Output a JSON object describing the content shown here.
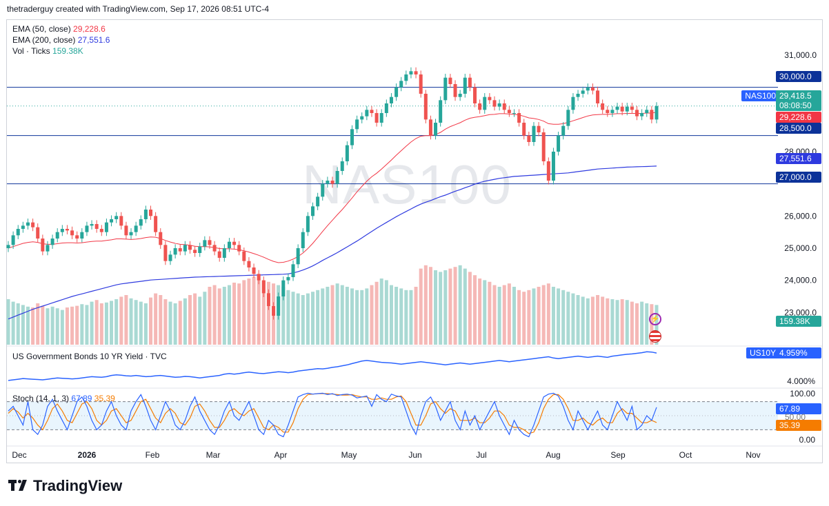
{
  "header": "thetraderguy created with TradingView.com, Sep 17, 2026 08:51 UTC-4",
  "watermark": "NAS100",
  "brand": "TradingView",
  "legend": {
    "ema50_label": "EMA (50, close)",
    "ema50_value": "29,228.6",
    "ema200_label": "EMA (200, close)",
    "ema200_value": "27,551.6",
    "vol_label": "Vol · Ticks",
    "vol_value": "159.38K"
  },
  "bond_pane": {
    "label": "US Government Bonds 10 YR Yield · TVC",
    "tag": "US10Y",
    "value": "4.959%",
    "axis_label": "4.000%"
  },
  "stoch_pane": {
    "label": "Stoch (14, 1, 3)",
    "k_value": "67.89",
    "d_value": "35.39",
    "axis": [
      "100.00",
      "50.00",
      "0.00"
    ]
  },
  "price_tags": {
    "symbol": "NAS100",
    "last": "29,418.5",
    "countdown": "08:08:50",
    "ema50": "29,228.6",
    "ema200": "27,551.6",
    "vol": "159.38K",
    "level_30000": "30,000.0",
    "level_28500": "28,500.0",
    "level_27000": "27,000.0"
  },
  "colors": {
    "up": "#26a69a",
    "down": "#ef5350",
    "ema50": "#f23645",
    "ema200": "#2e3adf",
    "vol_up": "#a9d9d3",
    "vol_down": "#f5b8b6",
    "bond": "#2962ff",
    "stoch_k": "#2962ff",
    "stoch_d": "#f57c00",
    "hline": "#0c3299"
  },
  "chart_data": {
    "type": "candlestick",
    "symbol": "NAS100",
    "x_ticks": [
      "Dec",
      "2026",
      "Feb",
      "Mar",
      "Apr",
      "May",
      "Jun",
      "Jul",
      "Aug",
      "Sep",
      "Oct",
      "Nov"
    ],
    "y_ticks": [
      "31,000.0",
      "28,000.0",
      "26,000.0",
      "25,000.0",
      "24,000.0",
      "23,000.0"
    ],
    "y_tick_values": [
      31000,
      28000,
      26000,
      25000,
      24000,
      23000
    ],
    "y_range": [
      22000,
      31900
    ],
    "horizontal_levels": [
      30000,
      28500,
      27000
    ],
    "last_price": 29418.5,
    "close_series": [
      25100,
      25400,
      25600,
      25700,
      25800,
      25650,
      25300,
      24900,
      25100,
      25300,
      25500,
      25600,
      25550,
      25400,
      25300,
      25500,
      25700,
      25750,
      25600,
      25500,
      25800,
      25900,
      26000,
      25700,
      25400,
      25500,
      25700,
      25900,
      26200,
      26000,
      25500,
      25100,
      24600,
      24800,
      25000,
      24900,
      25100,
      24950,
      24850,
      25050,
      25250,
      25100,
      24900,
      24700,
      25000,
      25200,
      25100,
      24900,
      24600,
      24400,
      24200,
      24000,
      23600,
      23200,
      22900,
      23500,
      24000,
      24100,
      24500,
      25000,
      25500,
      26000,
      26300,
      26600,
      27000,
      27100,
      27000,
      27400,
      27700,
      28200,
      28700,
      29000,
      29100,
      29300,
      29200,
      28900,
      29200,
      29500,
      29700,
      30000,
      30200,
      30400,
      30500,
      30400,
      29800,
      29000,
      28500,
      28900,
      29600,
      30300,
      30100,
      29700,
      29800,
      30300,
      30000,
      29500,
      29300,
      29700,
      29600,
      29400,
      29500,
      29300,
      29200,
      29200,
      28900,
      28500,
      28300,
      28800,
      28600,
      27700,
      27100,
      28000,
      28500,
      28800,
      29300,
      29700,
      29800,
      29900,
      30000,
      29900,
      29500,
      29300,
      29200,
      29300,
      29400,
      29250,
      29400,
      29300,
      29100,
      29200,
      29300,
      29000,
      29418.5
    ],
    "ema50_series": [
      25000,
      25050,
      25100,
      25150,
      25180,
      25200,
      25180,
      25140,
      25120,
      25120,
      25140,
      25160,
      25170,
      25170,
      25160,
      25170,
      25190,
      25210,
      25220,
      25220,
      25240,
      25260,
      25290,
      25290,
      25280,
      25270,
      25280,
      25300,
      25330,
      25350,
      25340,
      25300,
      25240,
      25190,
      25150,
      25120,
      25110,
      25090,
      25060,
      25050,
      25050,
      25040,
      25020,
      24990,
      24980,
      24980,
      24970,
      24950,
      24920,
      24880,
      24830,
      24780,
      24720,
      24650,
      24590,
      24550,
      24560,
      24600,
      24660,
      24740,
      24850,
      24990,
      25150,
      25330,
      25520,
      25700,
      25870,
      26040,
      26200,
      26380,
      26560,
      26750,
      26920,
      27080,
      27220,
      27330,
      27460,
      27600,
      27740,
      27890,
      28030,
      28170,
      28300,
      28410,
      28480,
      28500,
      28500,
      28530,
      28600,
      28700,
      28780,
      28840,
      28900,
      28980,
      29040,
      29070,
      29090,
      29120,
      29150,
      29160,
      29180,
      29180,
      29170,
      29160,
      29140,
      29100,
      29050,
      29030,
      29000,
      28950,
      28870,
      28850,
      28850,
      28870,
      28910,
      28960,
      29010,
      29060,
      29110,
      29140,
      29150,
      29160,
      29160,
      29170,
      29180,
      29180,
      29190,
      29190,
      29190,
      29190,
      29200,
      29200,
      29228.6
    ],
    "ema200_series": [
      22800,
      22860,
      22920,
      22980,
      23040,
      23100,
      23150,
      23200,
      23250,
      23300,
      23350,
      23400,
      23450,
      23500,
      23540,
      23580,
      23620,
      23660,
      23700,
      23740,
      23780,
      23820,
      23860,
      23890,
      23910,
      23930,
      23950,
      23970,
      23990,
      24010,
      24020,
      24030,
      24040,
      24050,
      24060,
      24070,
      24080,
      24090,
      24100,
      24105,
      24110,
      24115,
      24120,
      24125,
      24130,
      24135,
      24140,
      24145,
      24150,
      24155,
      24160,
      24165,
      24170,
      24175,
      24180,
      24185,
      24190,
      24200,
      24230,
      24270,
      24320,
      24380,
      24450,
      24530,
      24620,
      24700,
      24780,
      24860,
      24950,
      25040,
      25130,
      25220,
      25320,
      25420,
      25520,
      25620,
      25710,
      25800,
      25890,
      25980,
      26060,
      26140,
      26220,
      26300,
      26370,
      26430,
      26480,
      26540,
      26600,
      26650,
      26710,
      26770,
      26820,
      26880,
      26930,
      26990,
      27040,
      27080,
      27110,
      27140,
      27170,
      27190,
      27210,
      27230,
      27240,
      27250,
      27260,
      27270,
      27280,
      27290,
      27300,
      27310,
      27320,
      27330,
      27340,
      27360,
      27380,
      27400,
      27420,
      27440,
      27460,
      27470,
      27480,
      27490,
      27500,
      27510,
      27520,
      27525,
      27530,
      27535,
      27540,
      27545,
      27551.6
    ],
    "volume_series": [
      55,
      52,
      50,
      48,
      46,
      45,
      50,
      47,
      44,
      46,
      44,
      42,
      45,
      46,
      47,
      49,
      48,
      52,
      54,
      50,
      51,
      53,
      55,
      58,
      60,
      56,
      54,
      52,
      50,
      57,
      62,
      60,
      55,
      52,
      50,
      53,
      56,
      60,
      62,
      58,
      64,
      70,
      72,
      68,
      70,
      72,
      75,
      74,
      78,
      80,
      82,
      80,
      78,
      76,
      74,
      72,
      70,
      66,
      64,
      62,
      60,
      62,
      64,
      66,
      68,
      70,
      72,
      74,
      72,
      70,
      68,
      66,
      66,
      68,
      72,
      76,
      80,
      78,
      72,
      70,
      68,
      66,
      66,
      70,
      92,
      96,
      94,
      90,
      88,
      90,
      92,
      94,
      96,
      92,
      88,
      84,
      80,
      78,
      76,
      72,
      70,
      72,
      74,
      70,
      66,
      64,
      66,
      68,
      70,
      72,
      74,
      70,
      68,
      66,
      64,
      62,
      60,
      58,
      56,
      58,
      60,
      58,
      56,
      55,
      54,
      55,
      54,
      52,
      50,
      52,
      50,
      49,
      48
    ],
    "bond_series": [
      4.08,
      4.1,
      4.12,
      4.14,
      4.13,
      4.12,
      4.11,
      4.1,
      4.12,
      4.14,
      4.16,
      4.15,
      4.14,
      4.13,
      4.14,
      4.16,
      4.18,
      4.2,
      4.19,
      4.18,
      4.2,
      4.24,
      4.26,
      4.25,
      4.23,
      4.22,
      4.24,
      4.22,
      4.2,
      4.21,
      4.23,
      4.24,
      4.22,
      4.2,
      4.18,
      4.19,
      4.21,
      4.2,
      4.18,
      4.16,
      4.18,
      4.2,
      4.22,
      4.24,
      4.28,
      4.3,
      4.28,
      4.3,
      4.33,
      4.35,
      4.33,
      4.31,
      4.3,
      4.32,
      4.34,
      4.36,
      4.35,
      4.33,
      4.35,
      4.38,
      4.4,
      4.42,
      4.44,
      4.46,
      4.45,
      4.47,
      4.5,
      4.52,
      4.55,
      4.58,
      4.62,
      4.66,
      4.7,
      4.72,
      4.7,
      4.68,
      4.66,
      4.65,
      4.64,
      4.62,
      4.6,
      4.62,
      4.64,
      4.66,
      4.68,
      4.66,
      4.64,
      4.62,
      4.6,
      4.58,
      4.6,
      4.62,
      4.64,
      4.62,
      4.6,
      4.62,
      4.64,
      4.66,
      4.68,
      4.7,
      4.72,
      4.7,
      4.68,
      4.7,
      4.72,
      4.74,
      4.76,
      4.78,
      4.8,
      4.82,
      4.84,
      4.8,
      4.78,
      4.8,
      4.82,
      4.84,
      4.86,
      4.84,
      4.82,
      4.84,
      4.86,
      4.84,
      4.82,
      4.86,
      4.88,
      4.9,
      4.92,
      4.93,
      4.95,
      4.97,
      5.0,
      4.99,
      4.959
    ],
    "bond_range": [
      3.9,
      5.05
    ],
    "stoch_k": [
      60,
      70,
      50,
      30,
      80,
      20,
      10,
      30,
      70,
      85,
      60,
      40,
      20,
      50,
      80,
      90,
      70,
      40,
      20,
      30,
      60,
      80,
      50,
      30,
      20,
      60,
      80,
      95,
      70,
      40,
      20,
      50,
      80,
      60,
      30,
      20,
      40,
      70,
      90,
      60,
      40,
      20,
      10,
      30,
      60,
      80,
      50,
      40,
      60,
      80,
      50,
      20,
      10,
      40,
      30,
      10,
      5,
      30,
      60,
      90,
      95,
      98,
      96,
      97,
      98,
      95,
      97,
      93,
      95,
      96,
      94,
      88,
      90,
      92,
      70,
      95,
      85,
      80,
      96,
      92,
      90,
      60,
      30,
      10,
      50,
      80,
      90,
      70,
      40,
      60,
      80,
      40,
      20,
      60,
      30,
      50,
      20,
      40,
      60,
      80,
      50,
      30,
      10,
      40,
      20,
      10,
      5,
      30,
      60,
      90,
      96,
      98,
      92,
      70,
      40,
      20,
      60,
      40,
      20,
      40,
      60,
      30,
      20,
      50,
      80,
      60,
      40,
      70,
      20,
      30,
      50,
      40,
      67.89
    ],
    "stoch_d": [
      55,
      65,
      58,
      45,
      55,
      45,
      30,
      20,
      40,
      65,
      75,
      60,
      40,
      35,
      55,
      75,
      80,
      65,
      40,
      30,
      40,
      60,
      65,
      50,
      35,
      40,
      60,
      80,
      85,
      65,
      45,
      35,
      55,
      65,
      55,
      35,
      30,
      45,
      70,
      75,
      60,
      40,
      25,
      25,
      40,
      60,
      65,
      55,
      50,
      60,
      65,
      45,
      25,
      20,
      30,
      25,
      15,
      15,
      35,
      65,
      85,
      95,
      96,
      97,
      97,
      97,
      96,
      95,
      94,
      94,
      95,
      92,
      90,
      90,
      85,
      85,
      88,
      85,
      85,
      90,
      92,
      80,
      55,
      30,
      30,
      50,
      75,
      80,
      65,
      55,
      65,
      60,
      40,
      40,
      40,
      45,
      35,
      35,
      45,
      60,
      60,
      50,
      30,
      25,
      25,
      20,
      12,
      15,
      35,
      65,
      85,
      95,
      95,
      85,
      65,
      40,
      40,
      45,
      35,
      30,
      40,
      45,
      35,
      35,
      55,
      65,
      55,
      55,
      45,
      35,
      35,
      40,
      35.39
    ]
  }
}
